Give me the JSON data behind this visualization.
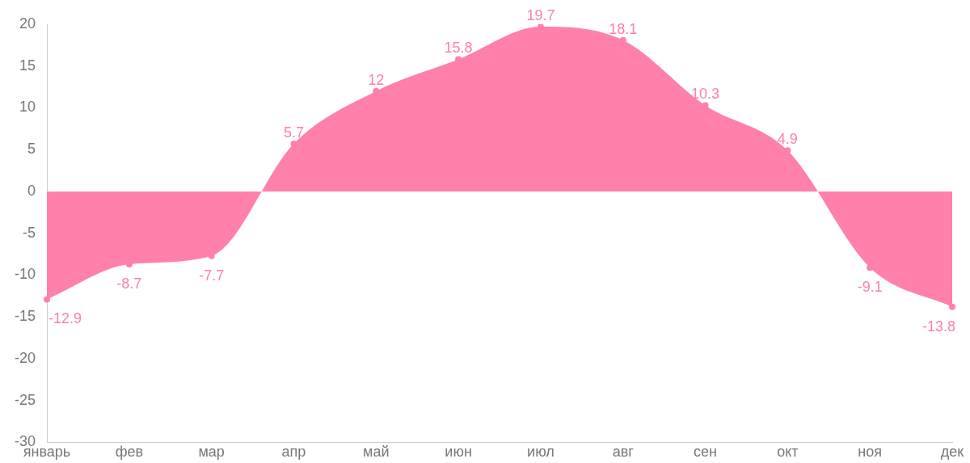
{
  "chart_data": {
    "type": "area",
    "categories": [
      "январь",
      "фев",
      "мар",
      "апр",
      "май",
      "июн",
      "июл",
      "авг",
      "сен",
      "окт",
      "ноя",
      "дек"
    ],
    "series": [
      {
        "color": "#ff80aa",
        "values": [
          -12.9,
          -8.7,
          -7.7,
          5.7,
          12,
          15.8,
          19.7,
          18.1,
          10.3,
          4.9,
          -9.1,
          -13.8
        ]
      }
    ],
    "ylim": [
      -30,
      20
    ],
    "yticks": [
      -30,
      -25,
      -20,
      -15,
      -10,
      -5,
      0,
      5,
      10,
      15,
      20
    ],
    "grid": false,
    "legend": false,
    "marker": "circle",
    "data_labels": true
  }
}
